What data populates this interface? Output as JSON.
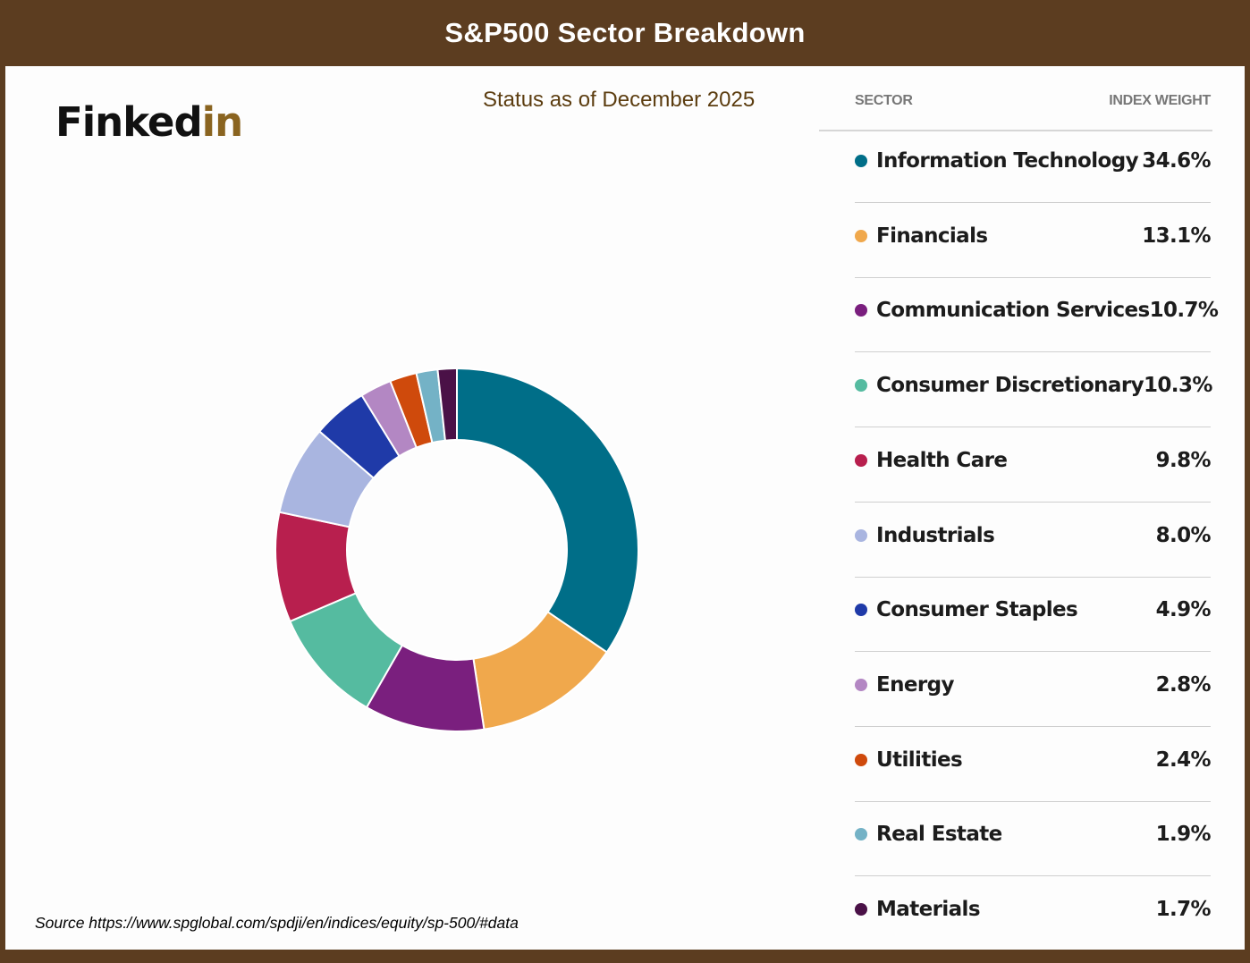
{
  "header": {
    "title": "S&P500 Sector Breakdown"
  },
  "logo": {
    "part1": "Finked",
    "part2": "in"
  },
  "subtitle": "Status as of December 2025",
  "source": "Source https://www.spglobal.com/spdji/en/indices/equity/sp-500/#data",
  "table": {
    "col_sector": "SECTOR",
    "col_weight": "INDEX WEIGHT"
  },
  "chart_data": {
    "type": "pie",
    "title": "S&P500 Sector Breakdown",
    "subtitle": "Status as of December 2025",
    "categories": [
      "Information Technology",
      "Financials",
      "Communication Services",
      "Consumer Discretionary",
      "Health Care",
      "Industrials",
      "Consumer Staples",
      "Energy",
      "Utilities",
      "Real Estate",
      "Materials"
    ],
    "values": [
      34.6,
      13.1,
      10.7,
      10.3,
      9.8,
      8.0,
      4.9,
      2.8,
      2.4,
      1.9,
      1.7
    ],
    "labels": [
      "34.6%",
      "13.1%",
      "10.7%",
      "10.3%",
      "9.8%",
      "8.0%",
      "4.9%",
      "2.8%",
      "2.4%",
      "1.9%",
      "1.7%"
    ],
    "colors": [
      "#006e88",
      "#f0a84c",
      "#7a1f7e",
      "#55bba0",
      "#b81f4e",
      "#a9b5e0",
      "#1f3aa8",
      "#b387c3",
      "#cf4a0c",
      "#74b2c6",
      "#4a1147"
    ],
    "donut": true,
    "legend": "right"
  }
}
